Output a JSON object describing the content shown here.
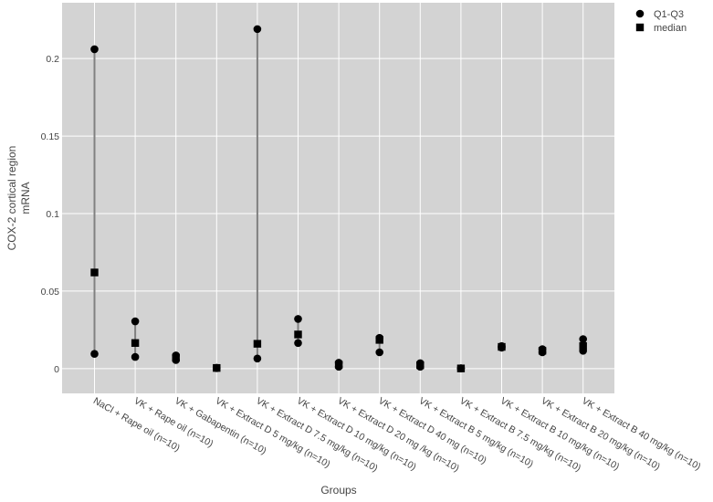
{
  "chart_data": {
    "type": "scatter",
    "title": "",
    "xlabel": "Groups",
    "ylabel_lines": [
      "COX-2 cortical region",
      "mRNA"
    ],
    "ylim": [
      -0.016,
      0.236
    ],
    "yticks": [
      0,
      0.05,
      0.1,
      0.15,
      0.2
    ],
    "ytick_labels": [
      "0",
      "0.05",
      "0.1",
      "0.15",
      "0.2"
    ],
    "grid": true,
    "legend_position": "top-right",
    "colors": {
      "plot_bg": "#d3d3d3",
      "grid": "#ffffff",
      "marker": "#000000",
      "whisker": "#808080"
    },
    "categories": [
      "NaCl + Rape oil (n=10)",
      "VK + Rape oil (n=10)",
      "VK + Gabapentin (n=10)",
      "VK + Extract D 5 mg/kg (n=10)",
      "VK + Extract D 7.5 mg/kg (n=10)",
      "VK + Extract D 10 mg/kg (n=10)",
      "VK + Extract D 20 mg /kg (n=10)",
      "VK + Extract D 40 mg (n=10)",
      "VK + Extract B 5 mg/kg (n=10)",
      "VK + Extract B 7.5 mg/kg (n=10)",
      "VK + Extract B 10 mg/kg (n=10)",
      "VK + Extract B 20 mg/kg (n=10)",
      "VK + Extract B 40 mg/kg (n=10)"
    ],
    "series": [
      {
        "name": "Q1-Q3",
        "marker": "circle",
        "q1": [
          0.0095,
          0.0075,
          0.0055,
          0.0003,
          0.0065,
          0.0165,
          0.0012,
          0.0105,
          0.0012,
          0.0001,
          0.0135,
          0.0105,
          0.0115
        ],
        "q3": [
          0.206,
          0.0305,
          0.0085,
          0.0005,
          0.219,
          0.032,
          0.0038,
          0.0198,
          0.0035,
          0.0002,
          0.0145,
          0.0125,
          0.019
        ]
      },
      {
        "name": "median",
        "marker": "square",
        "values": [
          0.062,
          0.0165,
          0.007,
          0.0004,
          0.016,
          0.022,
          0.0025,
          0.0185,
          0.0022,
          0.0001,
          0.014,
          0.0115,
          0.0145
        ]
      }
    ]
  }
}
